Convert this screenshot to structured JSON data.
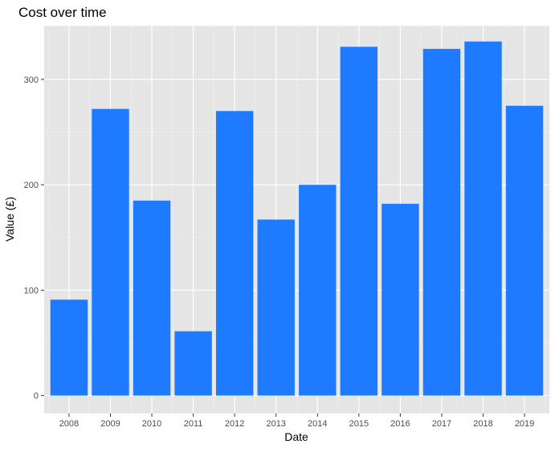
{
  "chart_data": {
    "type": "bar",
    "title": "Cost over time",
    "xlabel": "Date",
    "ylabel": "Value (£)",
    "categories": [
      "2008",
      "2009",
      "2010",
      "2011",
      "2012",
      "2013",
      "2014",
      "2015",
      "2016",
      "2017",
      "2018",
      "2019"
    ],
    "values": [
      91,
      272,
      185,
      61,
      270,
      167,
      200,
      331,
      182,
      329,
      336,
      275
    ],
    "ylim": [
      -17,
      351
    ],
    "yticks": [
      0,
      100,
      200,
      300
    ],
    "grid": true,
    "legend": "none",
    "colors": {
      "bar": "#1e7bff",
      "panel": "#e5e5e5",
      "grid_major": "#ffffff",
      "grid_minor": "#f0f0f0",
      "tick": "#333333"
    }
  }
}
